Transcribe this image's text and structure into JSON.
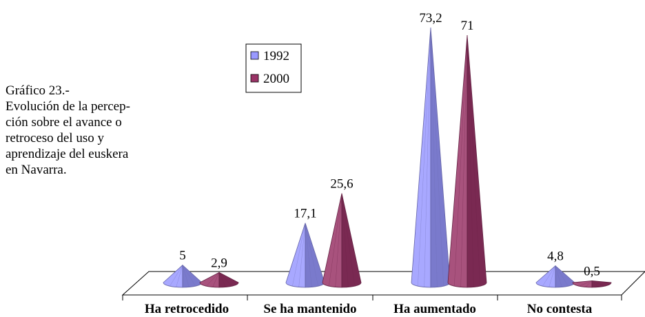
{
  "title_block": {
    "text": "Gráfico 23.-\nEvolución de la percep-\nción sobre el avance o\nretroceso del uso y\naprendizaje del euskera\nen Navarra."
  },
  "chart_data": {
    "type": "bar",
    "bar_shape": "cone-3d",
    "categories": [
      "Ha retrocedido",
      "Se ha mantenido",
      "Ha aumentado",
      "No contesta"
    ],
    "series": [
      {
        "name": "1992",
        "values": [
          5,
          17.1,
          73.2,
          4.8
        ],
        "labels": [
          "5",
          "17,1",
          "73,2",
          "4,8"
        ],
        "color": "#9999ff"
      },
      {
        "name": "2000",
        "values": [
          2.9,
          25.6,
          71,
          0.5
        ],
        "labels": [
          "2,9",
          "25,6",
          "71",
          "0,5"
        ],
        "color": "#993366"
      }
    ],
    "legend": "upper-center",
    "grid": false
  }
}
